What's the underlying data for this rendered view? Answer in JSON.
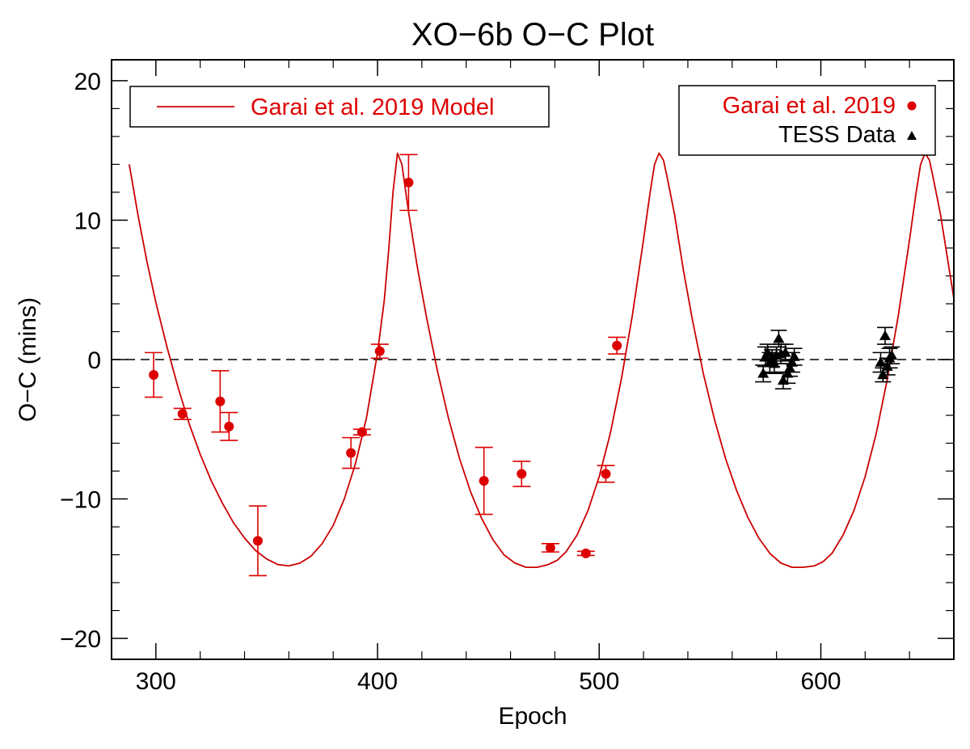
{
  "chart_data": {
    "type": "scatter",
    "title": "XO−6b O−C Plot",
    "xlabel": "Epoch",
    "ylabel": "O−C (mins)",
    "xlim": [
      280,
      660
    ],
    "ylim": [
      -21.5,
      21.5
    ],
    "x_ticks": [
      300,
      400,
      500,
      600
    ],
    "y_ticks": [
      -20,
      -10,
      0,
      10,
      20
    ],
    "x_tick_labels": [
      "300",
      "400",
      "500",
      "600"
    ],
    "y_tick_labels": [
      "−20",
      "−10",
      "0",
      "10",
      "20"
    ],
    "x_minor_step": 20,
    "y_minor_step": 2,
    "reference_line": {
      "y": 0,
      "style": "dashed"
    },
    "model": {
      "name": "Garai et al. 2019 Model",
      "color": "#cc0000",
      "x": [
        288,
        292,
        296,
        300,
        305,
        310,
        315,
        320,
        325,
        330,
        335,
        340,
        345,
        350,
        355,
        360,
        365,
        370,
        375,
        380,
        385,
        390,
        395,
        400,
        403,
        405,
        407,
        409,
        411,
        414,
        418,
        422,
        427,
        432,
        437,
        442,
        447,
        452,
        457,
        462,
        467,
        472,
        477,
        481,
        485,
        490,
        495,
        500,
        505,
        510,
        515,
        520,
        523,
        525,
        527,
        529,
        531,
        534,
        538,
        542,
        547,
        552,
        557,
        562,
        567,
        572,
        577,
        582,
        587,
        592,
        597,
        601,
        605,
        610,
        615,
        620,
        625,
        630,
        635,
        640,
        643,
        645,
        647,
        649,
        651,
        654,
        658,
        660
      ],
      "y": [
        14.0,
        10.3,
        7.0,
        4.1,
        0.9,
        -2.0,
        -4.6,
        -6.8,
        -8.7,
        -10.3,
        -11.7,
        -12.8,
        -13.7,
        -14.3,
        -14.7,
        -14.8,
        -14.6,
        -14.1,
        -13.2,
        -11.9,
        -10.0,
        -7.5,
        -4.2,
        0.5,
        4.2,
        7.8,
        12.0,
        14.8,
        14.0,
        10.6,
        6.6,
        3.1,
        -0.8,
        -4.2,
        -7.1,
        -9.5,
        -11.4,
        -12.9,
        -14.0,
        -14.6,
        -14.9,
        -14.9,
        -14.7,
        -14.4,
        -13.8,
        -12.6,
        -10.8,
        -8.4,
        -5.3,
        -1.4,
        3.2,
        8.6,
        12.0,
        14.0,
        14.8,
        14.3,
        12.8,
        10.4,
        6.4,
        2.9,
        -1.0,
        -4.3,
        -7.1,
        -9.4,
        -11.3,
        -12.8,
        -13.9,
        -14.6,
        -14.9,
        -14.9,
        -14.8,
        -14.5,
        -13.9,
        -12.6,
        -10.8,
        -8.4,
        -5.3,
        -1.4,
        3.2,
        8.6,
        12.0,
        14.0,
        14.8,
        14.3,
        12.8,
        10.4,
        6.4,
        4.4
      ]
    },
    "series": [
      {
        "name": "Garai et al. 2019",
        "color": "#dd0000",
        "marker": "circle",
        "points": [
          {
            "x": 299,
            "y": -1.1,
            "err": 1.6
          },
          {
            "x": 312,
            "y": -3.9,
            "err": 0.4
          },
          {
            "x": 329,
            "y": -3.0,
            "err": 2.2
          },
          {
            "x": 333,
            "y": -4.8,
            "err": 1.0
          },
          {
            "x": 346,
            "y": -13.0,
            "err": 2.5
          },
          {
            "x": 388,
            "y": -6.7,
            "err": 1.1
          },
          {
            "x": 393,
            "y": -5.2,
            "err": 0.2
          },
          {
            "x": 401,
            "y": 0.6,
            "err": 0.5
          },
          {
            "x": 414,
            "y": 12.7,
            "err": 2.0
          },
          {
            "x": 448,
            "y": -8.7,
            "err": 2.4
          },
          {
            "x": 465,
            "y": -8.2,
            "err": 0.9
          },
          {
            "x": 478,
            "y": -13.5,
            "err": 0.3
          },
          {
            "x": 494,
            "y": -13.9,
            "err": 0.15
          },
          {
            "x": 503,
            "y": -8.2,
            "err": 0.6
          },
          {
            "x": 508,
            "y": 1.0,
            "err": 0.6
          }
        ]
      },
      {
        "name": "TESS Data",
        "color": "#000000",
        "marker": "triangle",
        "points": [
          {
            "x": 574,
            "y": -1.0,
            "err": 0.6
          },
          {
            "x": 575,
            "y": 0.2,
            "err": 0.7
          },
          {
            "x": 576,
            "y": 0.5,
            "err": 0.6
          },
          {
            "x": 577,
            "y": -0.2,
            "err": 0.7
          },
          {
            "x": 578,
            "y": 0.1,
            "err": 0.6
          },
          {
            "x": 579,
            "y": -0.3,
            "err": 0.7
          },
          {
            "x": 580,
            "y": 0.3,
            "err": 0.6
          },
          {
            "x": 581,
            "y": 1.5,
            "err": 0.6
          },
          {
            "x": 582,
            "y": 0.4,
            "err": 0.7
          },
          {
            "x": 583,
            "y": -1.5,
            "err": 0.6
          },
          {
            "x": 584,
            "y": 0.5,
            "err": 0.6
          },
          {
            "x": 585,
            "y": -1.0,
            "err": 0.7
          },
          {
            "x": 586,
            "y": -0.6,
            "err": 0.6
          },
          {
            "x": 587,
            "y": -0.2,
            "err": 0.7
          },
          {
            "x": 588,
            "y": 0.2,
            "err": 0.6
          },
          {
            "x": 627,
            "y": -0.2,
            "err": 0.7
          },
          {
            "x": 628,
            "y": -1.1,
            "err": 0.5
          },
          {
            "x": 629,
            "y": 1.7,
            "err": 0.6
          },
          {
            "x": 630,
            "y": -0.5,
            "err": 0.6
          },
          {
            "x": 631,
            "y": 0.1,
            "err": 0.7
          },
          {
            "x": 632,
            "y": 0.3,
            "err": 0.6
          }
        ]
      }
    ],
    "legend_left": {
      "label": "Garai et al. 2019 Model",
      "placement": "top-left"
    },
    "legend_right": {
      "labels": [
        "Garai et al. 2019",
        "TESS Data"
      ],
      "placement": "top-right"
    }
  }
}
